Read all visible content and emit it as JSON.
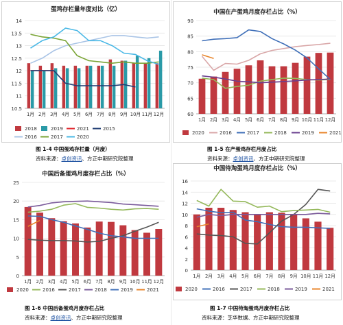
{
  "chart_data": [
    {
      "type": "bar+line",
      "title": "蛋鸡存栏量年度对比（亿）",
      "categories": [
        "1月",
        "2月",
        "3月",
        "4月",
        "5月",
        "6月",
        "7月",
        "8月",
        "9月",
        "10月",
        "11月",
        "12月"
      ],
      "ylim": [
        10.5,
        14
      ],
      "yticks": [
        10.5,
        11,
        11.5,
        12,
        12.5,
        13,
        13.5,
        14
      ],
      "series": [
        {
          "name": "2018",
          "kind": "bar",
          "color": "#c0393f",
          "values": [
            12.3,
            12.2,
            12.3,
            12.2,
            12.2,
            12.2,
            12.2,
            12.45,
            12.4,
            12.3,
            12.3,
            12.3
          ]
        },
        {
          "name": "2019",
          "kind": "bar",
          "color": "#2a9aa7",
          "values": [
            12.0,
            12.0,
            12.1,
            12.1,
            12.1,
            12.2,
            12.2,
            12.2,
            12.4,
            12.6,
            12.5,
            12.8
          ]
        },
        {
          "name": "2021",
          "kind": "line",
          "color": "#e0262c",
          "values": [
            12.0,
            12.0,
            12.0,
            null,
            null,
            null,
            null,
            null,
            null,
            null,
            null,
            null
          ]
        },
        {
          "name": "2015",
          "kind": "line",
          "color": "#1f3c73",
          "values": [
            12.0,
            12.0,
            12.0,
            11.5,
            11.4,
            11.4,
            11.4,
            11.4,
            11.45,
            11.35,
            null,
            null
          ]
        },
        {
          "name": "2016",
          "kind": "line",
          "color": "#a9c4e6",
          "values": [
            12.3,
            12.5,
            12.8,
            13.0,
            13.1,
            13.2,
            13.3,
            13.4,
            13.4,
            13.35,
            13.3,
            13.35
          ]
        },
        {
          "name": "2017",
          "kind": "line",
          "color": "#7aa435",
          "values": [
            13.45,
            13.35,
            13.3,
            13.2,
            12.6,
            12.4,
            12.35,
            12.3,
            12.35,
            12.3,
            12.3,
            12.35
          ]
        },
        {
          "name": "2020",
          "kind": "line",
          "color": "#4ab8e6",
          "values": [
            12.9,
            13.2,
            13.35,
            13.7,
            13.6,
            13.2,
            13.2,
            13.0,
            12.7,
            12.65,
            12.4,
            12.25
          ]
        }
      ]
    },
    {
      "type": "bar+line",
      "title": "中国在产蛋鸡月度存栏占比（%）",
      "categories": [
        "1月",
        "2月",
        "3月",
        "4月",
        "5月",
        "6月",
        "7月",
        "8月",
        "9月",
        "10月",
        "11月",
        "12月"
      ],
      "ylim": [
        60,
        90
      ],
      "yticks": [
        60,
        65,
        70,
        75,
        80,
        85,
        90
      ],
      "series": [
        {
          "name": "2020",
          "kind": "bar",
          "color": "#c0393f",
          "values": [
            71.3,
            72.0,
            73.5,
            74.5,
            75.6,
            77.2,
            75.3,
            75.3,
            76.4,
            78.4,
            79.6,
            79.7
          ]
        },
        {
          "name": "2016",
          "kind": "line",
          "color": "#d9a7a8",
          "values": [
            78.5,
            74.0,
            76.2,
            76.0,
            77.2,
            79.3,
            80.4,
            81.0,
            81.6,
            82.0,
            82.3,
            82.7
          ]
        },
        {
          "name": "2017",
          "kind": "line",
          "color": "#3f6fb8",
          "values": [
            83.5,
            84.0,
            84.2,
            84.5,
            87.0,
            86.5,
            84.2,
            82.5,
            80.5,
            78.0,
            74.5,
            71.0
          ]
        },
        {
          "name": "2018",
          "kind": "line",
          "color": "#94b85a",
          "values": [
            71.5,
            71.0,
            68.2,
            68.8,
            69.2,
            70.5,
            71.0,
            71.5,
            71.4,
            71.0,
            70.9,
            71.0
          ]
        },
        {
          "name": "2019",
          "kind": "line",
          "color": "#6a3f8f",
          "values": [
            72.2,
            71.8,
            71.2,
            70.5,
            70.3,
            70.0,
            70.2,
            70.4,
            70.6,
            70.9,
            71.0,
            71.2
          ]
        },
        {
          "name": "2021",
          "kind": "line",
          "color": "#e8842a",
          "values": [
            79.0,
            77.8,
            null,
            null,
            null,
            null,
            null,
            null,
            null,
            null,
            null,
            null
          ]
        }
      ]
    },
    {
      "type": "bar+line",
      "title": "中国后备蛋鸡月度存栏占比（%）",
      "categories": [
        "1月",
        "2月",
        "3月",
        "4月",
        "5月",
        "6月",
        "7月",
        "8月",
        "9月",
        "10月",
        "11月",
        "12月"
      ],
      "ylim": [
        0,
        25
      ],
      "yticks": [
        0,
        5,
        10,
        15,
        20,
        25
      ],
      "series": [
        {
          "name": "2020",
          "kind": "bar",
          "color": "#c0393f",
          "values": [
            18.4,
            16.9,
            15.4,
            14.6,
            14.0,
            12.9,
            14.5,
            14.4,
            13.5,
            12.2,
            11.5,
            12.5
          ]
        },
        {
          "name": "2016",
          "kind": "line",
          "color": "#94b85a",
          "values": [
            17.0,
            17.3,
            17.8,
            18.9,
            19.3,
            18.3,
            18.1,
            17.8,
            17.6,
            17.9,
            18.0,
            17.8
          ]
        },
        {
          "name": "2017",
          "kind": "line",
          "color": "#555555",
          "values": [
            9.7,
            9.5,
            9.4,
            9.4,
            9.3,
            9.0,
            9.2,
            10.0,
            10.7,
            11.9,
            13.0,
            14.3
          ]
        },
        {
          "name": "2018",
          "kind": "line",
          "color": "#7a5a9a",
          "values": [
            18.4,
            18.8,
            19.5,
            19.8,
            19.9,
            20.0,
            19.8,
            19.6,
            19.2,
            19.0,
            18.8,
            18.6
          ]
        },
        {
          "name": "2019",
          "kind": "line",
          "color": "#3f6fb8",
          "values": [
            16.0,
            15.9,
            15.0,
            14.3,
            13.3,
            12.4,
            11.4,
            10.7,
            10.4,
            10.0,
            10.0,
            10.0
          ]
        },
        {
          "name": "2021",
          "kind": "line",
          "color": "#e8842a",
          "values": [
            13.2,
            14.8,
            null,
            null,
            null,
            null,
            null,
            null,
            null,
            null,
            null,
            null
          ]
        }
      ]
    },
    {
      "type": "bar+line",
      "title": "中国待淘蛋鸡月度存栏占比（%）",
      "categories": [
        "1月",
        "2月",
        "3月",
        "4月",
        "5月",
        "6月",
        "7月",
        "8月",
        "9月",
        "10月",
        "11月",
        "12月"
      ],
      "ylim": [
        0,
        16
      ],
      "yticks": [
        0,
        2,
        4,
        6,
        8,
        10,
        12,
        14,
        16
      ],
      "series": [
        {
          "name": "2020",
          "kind": "bar",
          "color": "#c0393f",
          "values": [
            10.0,
            11.2,
            11.2,
            10.8,
            10.4,
            10.0,
            10.4,
            10.3,
            10.0,
            9.3,
            8.7,
            7.6
          ]
        },
        {
          "name": "2016",
          "kind": "line",
          "color": "#3f6fb8",
          "values": [
            11.0,
            10.6,
            10.3,
            10.4,
            9.0,
            8.7,
            8.2,
            7.8,
            7.7,
            7.7,
            7.6,
            7.5
          ]
        },
        {
          "name": "2017",
          "kind": "line",
          "color": "#555555",
          "values": [
            6.5,
            6.3,
            6.2,
            6.0,
            4.8,
            4.7,
            6.7,
            8.8,
            10.0,
            11.8,
            14.5,
            14.2
          ]
        },
        {
          "name": "2018",
          "kind": "line",
          "color": "#94b85a",
          "values": [
            12.5,
            11.5,
            14.5,
            12.4,
            12.3,
            11.3,
            11.5,
            10.5,
            10.7,
            10.8,
            10.9,
            10.4
          ]
        },
        {
          "name": "2019",
          "kind": "line",
          "color": "#7a5a9a",
          "values": [
            9.5,
            10.0,
            9.8,
            10.0,
            10.0,
            10.0,
            10.0,
            10.0,
            10.0,
            10.0,
            10.2,
            10.1
          ]
        },
        {
          "name": "2021",
          "kind": "line",
          "color": "#e8842a",
          "values": [
            7.8,
            8.3,
            null,
            null,
            null,
            null,
            null,
            null,
            null,
            null,
            null,
            null
          ]
        }
      ]
    }
  ],
  "captions": [
    {
      "fig": "图 1-4  中国蛋鸡存栏量（月度）",
      "src_prefix": "资料来源：",
      "src_link": "卓创资讯",
      "src_suffix": "、方正中期研究院整理"
    },
    {
      "fig": "图 1-5  在产蛋鸡存栏月度占比",
      "src_prefix": "资料来源：",
      "src_link": "卓创资讯",
      "src_suffix": "、方正中期研究院整理"
    },
    {
      "fig": "图 1-6  中国后备蛋鸡月度存栏占比",
      "src_prefix": "资料来源：",
      "src_link": "卓创资讯",
      "src_suffix": "、方正中期研究院整理"
    },
    {
      "fig": "图 1-7 中国待淘蛋鸡月度存栏占比",
      "src_prefix": "资料来源：",
      "src_link": "",
      "src_suffix": "芝华数据、方正中期研究院整理"
    }
  ]
}
